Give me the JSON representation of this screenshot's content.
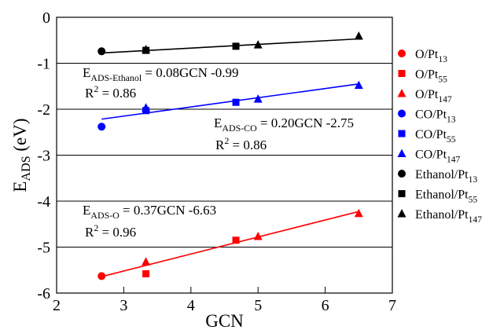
{
  "chart_data": {
    "type": "scatter",
    "x_label": "GCN",
    "y_label": {
      "base": "E",
      "sub": "ADS",
      "text": " (eV)"
    },
    "xlim": [
      2,
      7
    ],
    "xticks": [
      2,
      3,
      4,
      5,
      6,
      7
    ],
    "ylim": [
      -6,
      0
    ],
    "yticks": [
      -6,
      -5,
      -4,
      -3,
      -2,
      -1,
      0
    ],
    "grid": true,
    "legend": "right",
    "series": [
      {
        "name": "O/Pt",
        "subscript": "13",
        "color": "#ff0000",
        "marker": "circle",
        "x": [
          2.67
        ],
        "values": [
          -5.63
        ]
      },
      {
        "name": "O/Pt",
        "subscript": "55",
        "color": "#ff0000",
        "marker": "square",
        "x": [
          3.33,
          4.67
        ],
        "values": [
          -5.58,
          -4.85
        ]
      },
      {
        "name": "O/Pt",
        "subscript": "147",
        "color": "#ff0000",
        "marker": "triangle",
        "x": [
          3.33,
          5.0,
          6.5
        ],
        "values": [
          -5.32,
          -4.77,
          -4.27
        ]
      },
      {
        "name": "CO/Pt",
        "subscript": "13",
        "color": "#0000ff",
        "marker": "circle",
        "x": [
          2.67
        ],
        "values": [
          -2.38
        ]
      },
      {
        "name": "CO/Pt",
        "subscript": "55",
        "color": "#0000ff",
        "marker": "square",
        "x": [
          3.33,
          4.67
        ],
        "values": [
          -2.03,
          -1.85
        ]
      },
      {
        "name": "CO/Pt",
        "subscript": "147",
        "color": "#0000ff",
        "marker": "triangle",
        "x": [
          3.33,
          5.0,
          6.5
        ],
        "values": [
          -1.97,
          -1.78,
          -1.48
        ]
      },
      {
        "name": "Ethanol/Pt",
        "subscript": "13",
        "color": "#000000",
        "marker": "circle",
        "x": [
          2.67
        ],
        "values": [
          -0.74
        ]
      },
      {
        "name": "Ethanol/Pt",
        "subscript": "55",
        "color": "#000000",
        "marker": "square",
        "x": [
          3.33,
          4.67
        ],
        "values": [
          -0.72,
          -0.63
        ]
      },
      {
        "name": "Ethanol/Pt",
        "subscript": "147",
        "color": "#000000",
        "marker": "triangle",
        "x": [
          3.33,
          5.0,
          6.5
        ],
        "values": [
          -0.7,
          -0.6,
          -0.41
        ]
      }
    ],
    "fit_lines": [
      {
        "color": "#000000",
        "x": [
          2.67,
          6.5
        ],
        "values": [
          -0.776,
          -0.47
        ]
      },
      {
        "color": "#0000ff",
        "x": [
          2.67,
          6.5
        ],
        "values": [
          -2.216,
          -1.45
        ]
      },
      {
        "color": "#ff0000",
        "x": [
          2.67,
          6.5
        ],
        "values": [
          -5.642,
          -4.225
        ]
      }
    ],
    "annotations": [
      {
        "base": "E",
        "sub": "ADS-Ethanol",
        "text": " = 0.08GCN -0.99"
      },
      {
        "base": "R",
        "sup": "2",
        "text": " = 0.86"
      },
      {
        "base": "E",
        "sub": "ADS-CO",
        "text": " = 0.20GCN -2.75"
      },
      {
        "base": "R",
        "sup": "2",
        "text": " = 0.86"
      },
      {
        "base": "E",
        "sub": "ADS-O",
        "text": " = 0.37GCN -6.63"
      },
      {
        "base": "R",
        "sup": "2",
        "text": " = 0.96"
      }
    ]
  }
}
